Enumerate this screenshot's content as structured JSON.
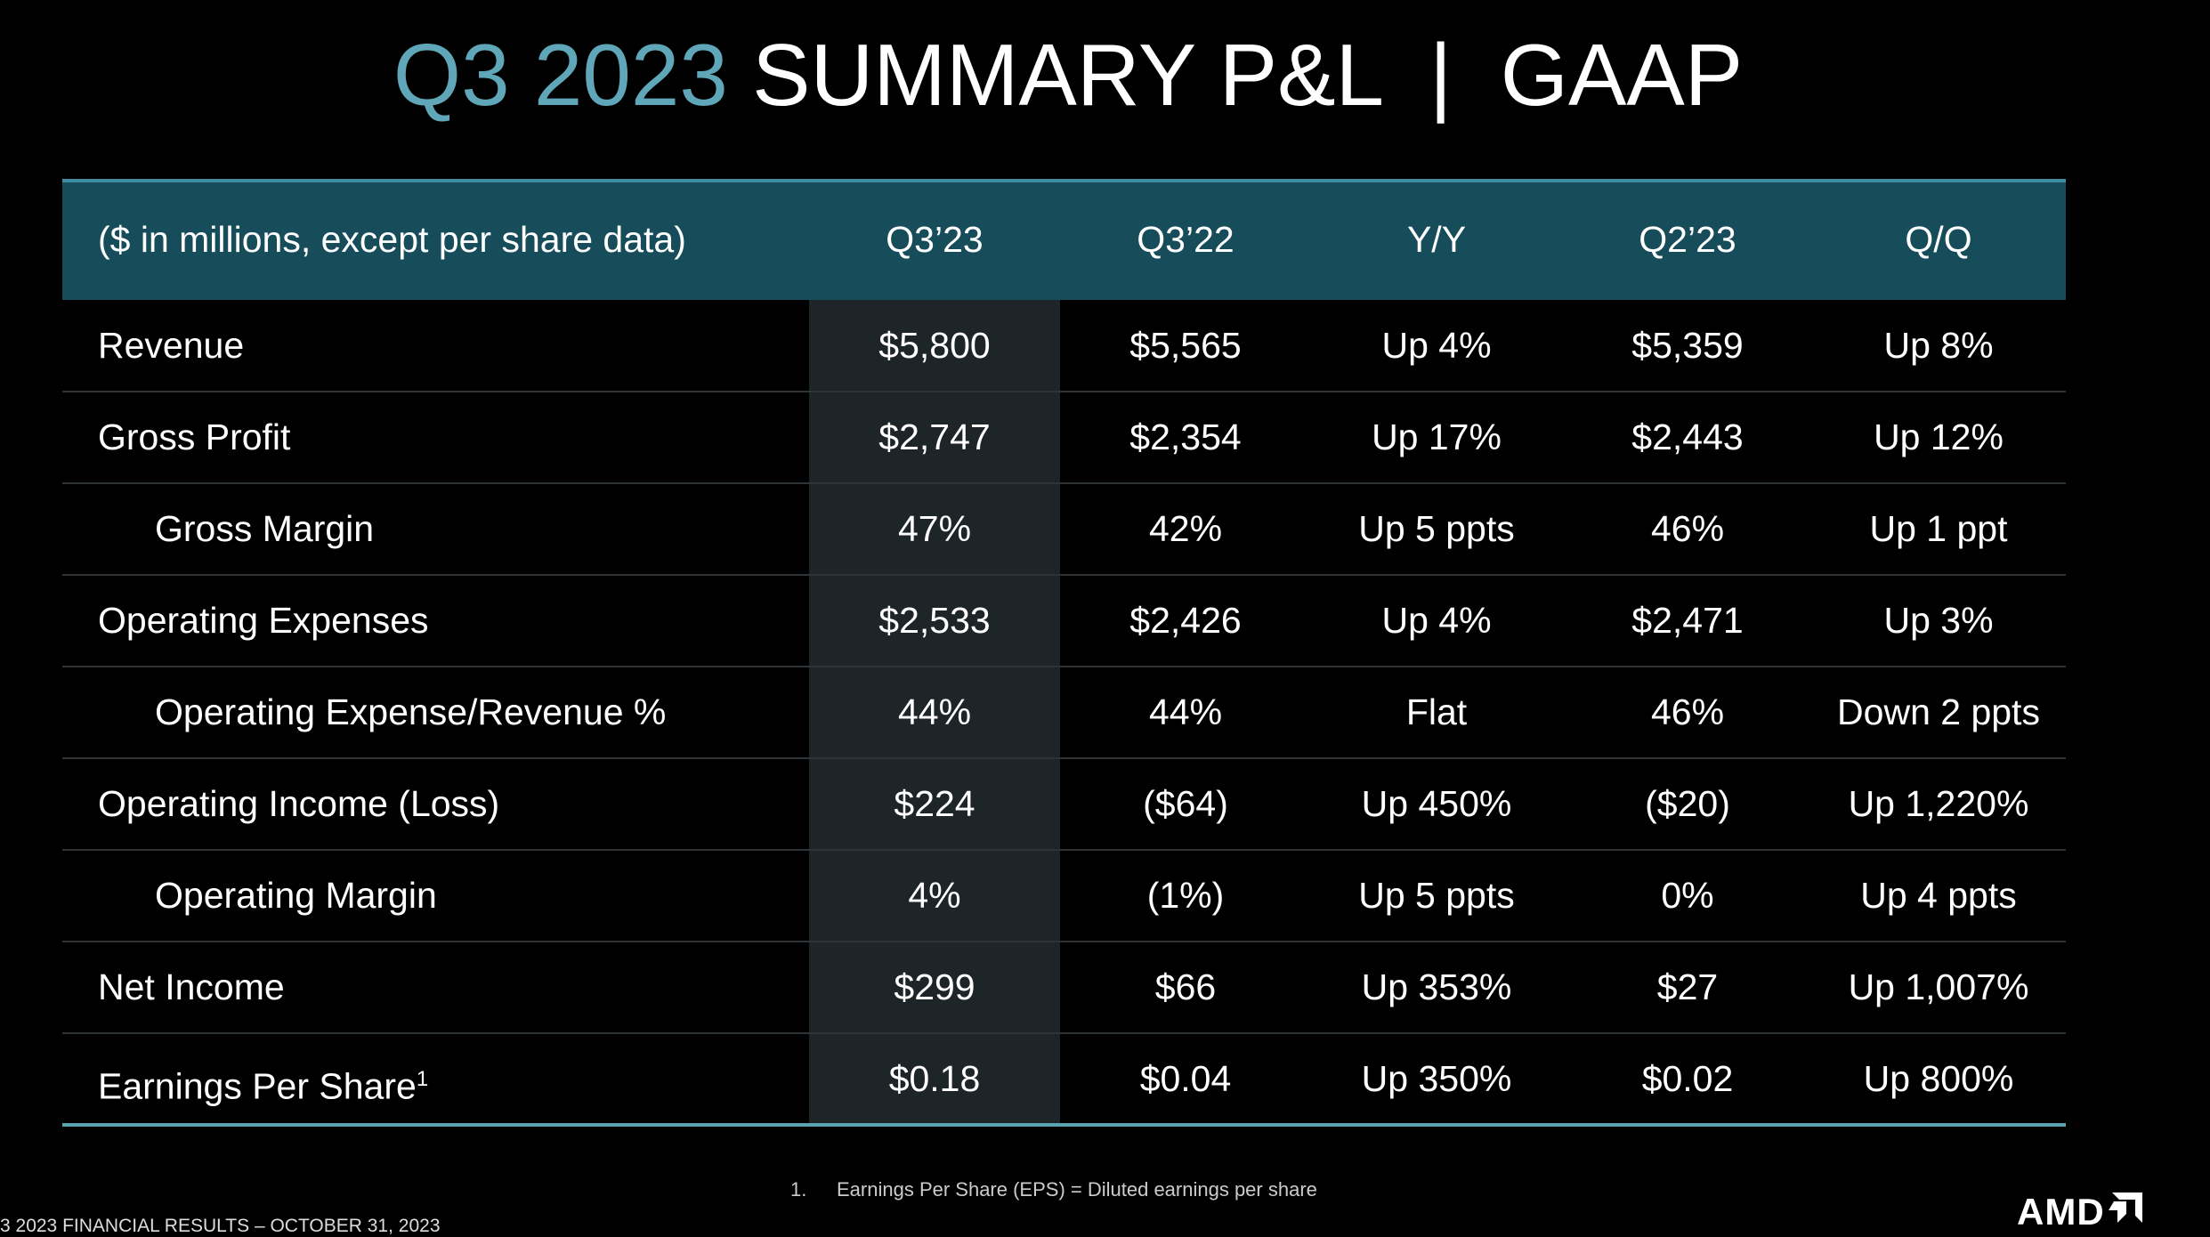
{
  "title": {
    "highlight": "Q3 2023",
    "main": "SUMMARY P&L",
    "separator": "|",
    "suffix": "GAAP"
  },
  "table": {
    "header": [
      "($ in millions, except per share data)",
      "Q3’23",
      "Q3’22",
      "Y/Y",
      "Q2’23",
      "Q/Q"
    ],
    "rows": [
      {
        "label": "Revenue",
        "cells": [
          "$5,800",
          "$5,565",
          "Up 4%",
          "$5,359",
          "Up 8%"
        ]
      },
      {
        "label": "Gross Profit",
        "cells": [
          "$2,747",
          "$2,354",
          "Up 17%",
          "$2,443",
          "Up 12%"
        ]
      },
      {
        "label": "Gross Margin",
        "cells": [
          "47%",
          "42%",
          "Up 5 ppts",
          "46%",
          "Up 1 ppt"
        ]
      },
      {
        "label": "Operating Expenses",
        "cells": [
          "$2,533",
          "$2,426",
          "Up 4%",
          "$2,471",
          "Up 3%"
        ]
      },
      {
        "label": "Operating Expense/Revenue %",
        "cells": [
          "44%",
          "44%",
          "Flat",
          "46%",
          "Down 2 ppts"
        ]
      },
      {
        "label": "Operating Income (Loss)",
        "cells": [
          "$224",
          "($64)",
          "Up 450%",
          "($20)",
          "Up 1,220%"
        ]
      },
      {
        "label": "Operating Margin",
        "cells": [
          "4%",
          "(1%)",
          "Up 5 ppts",
          "0%",
          "Up 4 ppts"
        ]
      },
      {
        "label": "Net Income",
        "cells": [
          "$299",
          "$66",
          "Up 353%",
          "$27",
          "Up 1,007%"
        ]
      },
      {
        "label": "Earnings Per Share",
        "note": "1",
        "cells": [
          "$0.18",
          "$0.04",
          "Up 350%",
          "$0.02",
          "Up 800%"
        ]
      }
    ]
  },
  "footnote": {
    "marker": "1.",
    "text": "Earnings Per Share (EPS) = Diluted earnings per share"
  },
  "footer": "3 2023 FINANCIAL RESULTS – OCTOBER 31, 2023",
  "logo": "AMD"
}
